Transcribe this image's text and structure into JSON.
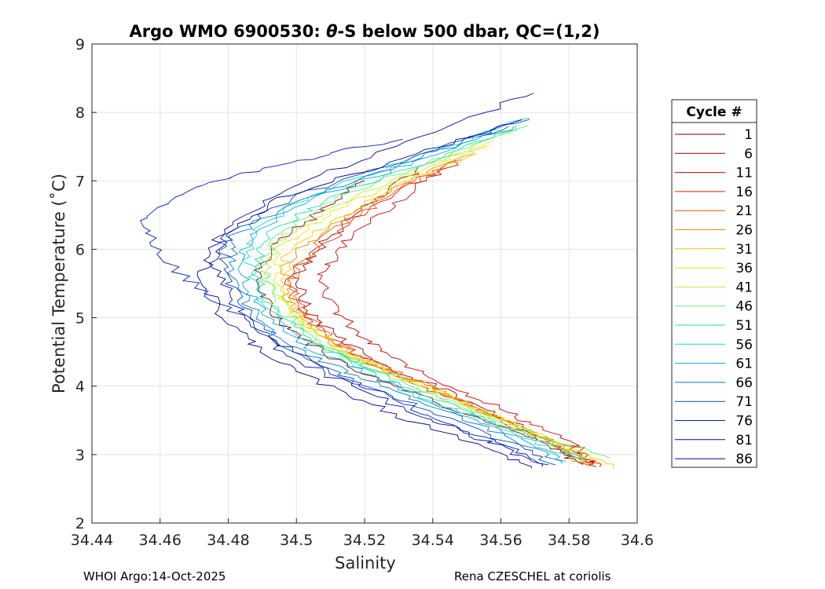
{
  "chart_data": {
    "type": "line",
    "title_prefix": "Argo WMO 6900530: ",
    "title_symbol": "θ",
    "title_suffix": "-S below 500 dbar,  QC=(1,2)",
    "xlabel": "Salinity",
    "ylabel": "Potential Temperature (˚C)",
    "xlim": [
      34.44,
      34.6
    ],
    "ylim": [
      2,
      9
    ],
    "xticks": [
      34.44,
      34.46,
      34.48,
      34.5,
      34.52,
      34.54,
      34.56,
      34.58,
      34.6
    ],
    "xtick_labels": [
      "34.44",
      "34.46",
      "34.48",
      "34.5",
      "34.52",
      "34.54",
      "34.56",
      "34.58",
      "34.6"
    ],
    "yticks": [
      2,
      3,
      4,
      5,
      6,
      7,
      8,
      9
    ],
    "ytick_labels": [
      "2",
      "3",
      "4",
      "5",
      "6",
      "7",
      "8",
      "9"
    ],
    "grid": true,
    "legend": {
      "title": "Cycle #",
      "placement": "outside-right",
      "entries": [
        {
          "label": "1",
          "color": "#800000"
        },
        {
          "label": "6",
          "color": "#a00000"
        },
        {
          "label": "11",
          "color": "#c80000"
        },
        {
          "label": "16",
          "color": "#e01a00"
        },
        {
          "label": "21",
          "color": "#f05000"
        },
        {
          "label": "26",
          "color": "#e89000"
        },
        {
          "label": "31",
          "color": "#f0c800"
        },
        {
          "label": "36",
          "color": "#e8e800"
        },
        {
          "label": "41",
          "color": "#b0f040"
        },
        {
          "label": "46",
          "color": "#60f080"
        },
        {
          "label": "51",
          "color": "#20e0a0"
        },
        {
          "label": "56",
          "color": "#10d8d8"
        },
        {
          "label": "61",
          "color": "#00a8d8"
        },
        {
          "label": "66",
          "color": "#0078c8"
        },
        {
          "label": "71",
          "color": "#0048c0"
        },
        {
          "label": "76",
          "color": "#0020b0"
        },
        {
          "label": "81",
          "color": "#000aa0"
        },
        {
          "label": "86",
          "color": "#000090"
        }
      ]
    },
    "series": [
      {
        "name": "1",
        "x": [
          34.52,
          34.508,
          34.495,
          34.488,
          34.492,
          34.502,
          34.515,
          34.535,
          34.555,
          34.575,
          34.584
        ],
        "y": [
          7.0,
          6.6,
          6.1,
          5.6,
          5.1,
          4.7,
          4.3,
          3.9,
          3.5,
          3.1,
          2.85
        ]
      },
      {
        "name": "6",
        "x": [
          34.537,
          34.522,
          34.508,
          34.5,
          34.503,
          34.513,
          34.526,
          34.545,
          34.563,
          34.58,
          34.588
        ],
        "y": [
          7.2,
          6.7,
          6.1,
          5.6,
          5.1,
          4.7,
          4.3,
          3.9,
          3.5,
          3.1,
          2.82
        ]
      },
      {
        "name": "11",
        "x": [
          34.548,
          34.532,
          34.517,
          34.508,
          34.51,
          34.518,
          34.53,
          34.548,
          34.565,
          34.581,
          34.589
        ],
        "y": [
          7.3,
          6.8,
          6.2,
          5.7,
          5.2,
          4.75,
          4.35,
          3.95,
          3.55,
          3.15,
          2.82
        ]
      },
      {
        "name": "16",
        "x": [
          34.543,
          34.525,
          34.508,
          34.498,
          34.5,
          34.51,
          34.523,
          34.542,
          34.56,
          34.577,
          34.586
        ],
        "y": [
          7.2,
          6.7,
          6.1,
          5.6,
          5.1,
          4.7,
          4.3,
          3.9,
          3.5,
          3.1,
          2.84
        ]
      },
      {
        "name": "21",
        "x": [
          34.547,
          34.527,
          34.509,
          34.499,
          34.5,
          34.509,
          34.522,
          34.541,
          34.559,
          34.577,
          34.586
        ],
        "y": [
          7.3,
          6.8,
          6.2,
          5.7,
          5.2,
          4.75,
          4.35,
          3.95,
          3.55,
          3.15,
          2.83
        ]
      },
      {
        "name": "26",
        "x": [
          34.55,
          34.529,
          34.508,
          34.497,
          34.497,
          34.506,
          34.519,
          34.538,
          34.557,
          34.575,
          34.585
        ],
        "y": [
          7.4,
          6.9,
          6.3,
          5.8,
          5.3,
          4.8,
          4.4,
          4.0,
          3.6,
          3.2,
          2.85
        ]
      },
      {
        "name": "31",
        "x": [
          34.555,
          34.533,
          34.51,
          34.497,
          34.496,
          34.503,
          34.516,
          34.536,
          34.556,
          34.576,
          34.593
        ],
        "y": [
          7.5,
          7.0,
          6.4,
          5.9,
          5.4,
          4.9,
          4.45,
          4.05,
          3.6,
          3.2,
          2.8
        ]
      },
      {
        "name": "36",
        "x": [
          34.558,
          34.534,
          34.509,
          34.495,
          34.494,
          34.5,
          34.513,
          34.533,
          34.554,
          34.574,
          34.59
        ],
        "y": [
          7.6,
          7.1,
          6.5,
          6.0,
          5.5,
          5.0,
          4.5,
          4.1,
          3.65,
          3.25,
          2.85
        ]
      },
      {
        "name": "41",
        "x": [
          34.562,
          34.537,
          34.51,
          34.494,
          34.492,
          34.497,
          34.51,
          34.53,
          34.551,
          34.571,
          34.586
        ],
        "y": [
          7.7,
          7.2,
          6.6,
          6.1,
          5.6,
          5.1,
          4.55,
          4.1,
          3.65,
          3.25,
          2.9
        ]
      },
      {
        "name": "46",
        "x": [
          34.566,
          34.54,
          34.51,
          34.493,
          34.49,
          34.495,
          34.507,
          34.527,
          34.549,
          34.57,
          34.592
        ],
        "y": [
          7.8,
          7.3,
          6.7,
          6.2,
          5.7,
          5.15,
          4.6,
          4.15,
          3.7,
          3.3,
          2.95
        ]
      },
      {
        "name": "51",
        "x": [
          34.566,
          34.539,
          34.508,
          34.491,
          34.488,
          34.492,
          34.504,
          34.524,
          34.546,
          34.567,
          34.585
        ],
        "y": [
          7.8,
          7.3,
          6.7,
          6.2,
          5.7,
          5.2,
          4.65,
          4.2,
          3.7,
          3.3,
          2.92
        ]
      },
      {
        "name": "56",
        "x": [
          34.567,
          34.538,
          34.505,
          34.488,
          34.486,
          34.49,
          34.502,
          34.522,
          34.544,
          34.565,
          34.582
        ],
        "y": [
          7.9,
          7.4,
          6.8,
          6.3,
          5.8,
          5.25,
          4.7,
          4.2,
          3.7,
          3.3,
          2.92
        ]
      },
      {
        "name": "61",
        "x": [
          34.565,
          34.536,
          34.503,
          34.486,
          34.484,
          34.488,
          34.5,
          34.52,
          34.542,
          34.563,
          34.579
        ],
        "y": [
          7.8,
          7.3,
          6.7,
          6.2,
          5.7,
          5.2,
          4.65,
          4.2,
          3.7,
          3.3,
          2.9
        ]
      },
      {
        "name": "66",
        "x": [
          34.563,
          34.533,
          34.5,
          34.482,
          34.481,
          34.486,
          34.498,
          34.518,
          34.541,
          34.562,
          34.578
        ],
        "y": [
          7.8,
          7.3,
          6.7,
          6.2,
          5.7,
          5.15,
          4.6,
          4.15,
          3.68,
          3.28,
          2.87
        ]
      },
      {
        "name": "71",
        "x": [
          34.568,
          34.537,
          34.5,
          34.48,
          34.478,
          34.484,
          34.496,
          34.516,
          34.538,
          34.559,
          34.576
        ],
        "y": [
          7.9,
          7.4,
          6.8,
          6.2,
          5.7,
          5.15,
          4.6,
          4.1,
          3.65,
          3.25,
          2.85
        ]
      },
      {
        "name": "76",
        "x": [
          34.53,
          34.5,
          34.47,
          34.455,
          34.462,
          34.478,
          34.494,
          34.513,
          34.535,
          34.557,
          34.574
        ],
        "y": [
          7.6,
          7.3,
          6.9,
          6.4,
          5.8,
          5.2,
          4.65,
          4.15,
          3.65,
          3.2,
          2.85
        ]
      },
      {
        "name": "81",
        "x": [
          34.57,
          34.54,
          34.503,
          34.481,
          34.476,
          34.482,
          34.493,
          34.512,
          34.534,
          34.556,
          34.572
        ],
        "y": [
          8.3,
          7.7,
          7.0,
          6.4,
          5.8,
          5.2,
          4.6,
          4.1,
          3.6,
          3.2,
          2.82
        ]
      },
      {
        "name": "86",
        "x": [
          34.567,
          34.535,
          34.498,
          34.477,
          34.472,
          34.478,
          34.49,
          34.509,
          34.531,
          34.553,
          34.569
        ],
        "y": [
          7.9,
          7.4,
          6.8,
          6.2,
          5.6,
          5.0,
          4.5,
          4.0,
          3.55,
          3.15,
          2.8
        ]
      }
    ]
  },
  "footer": {
    "left": "WHOI Argo:14-Oct-2025",
    "right": "Rena CZESCHEL at coriolis"
  }
}
